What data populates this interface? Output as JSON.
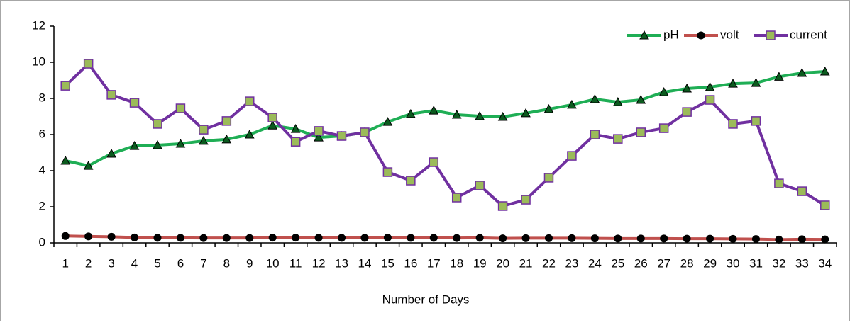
{
  "chart_data": {
    "type": "line",
    "xlabel": "Number of Days",
    "categories": [
      "1",
      "2",
      "3",
      "4",
      "5",
      "6",
      "7",
      "8",
      "9",
      "10",
      "11",
      "12",
      "13",
      "14",
      "15",
      "16",
      "17",
      "18",
      "19",
      "20",
      "21",
      "22",
      "23",
      "24",
      "25",
      "26",
      "27",
      "28",
      "29",
      "30",
      "31",
      "32",
      "33",
      "34"
    ],
    "series": [
      {
        "name": "pH",
        "color": "#1fae55",
        "marker": "triangle",
        "marker_fill": "#0b5a1e",
        "values": [
          4.55,
          4.27,
          4.94,
          5.37,
          5.41,
          5.49,
          5.65,
          5.73,
          6.0,
          6.5,
          6.31,
          5.84,
          5.92,
          6.12,
          6.7,
          7.14,
          7.33,
          7.1,
          7.02,
          6.98,
          7.18,
          7.41,
          7.65,
          7.96,
          7.8,
          7.92,
          8.35,
          8.55,
          8.63,
          8.82,
          8.86,
          9.2,
          9.41,
          9.49
        ]
      },
      {
        "name": "volt",
        "color": "#c0504d",
        "marker": "circle",
        "marker_fill": "#000000",
        "values": [
          0.38,
          0.36,
          0.34,
          0.3,
          0.28,
          0.28,
          0.27,
          0.27,
          0.27,
          0.29,
          0.29,
          0.28,
          0.28,
          0.28,
          0.29,
          0.28,
          0.28,
          0.27,
          0.28,
          0.25,
          0.26,
          0.26,
          0.26,
          0.25,
          0.24,
          0.24,
          0.24,
          0.23,
          0.23,
          0.22,
          0.21,
          0.18,
          0.2,
          0.19
        ]
      },
      {
        "name": "current",
        "color": "#7030a0",
        "marker": "square",
        "marker_fill": "#9bbb59",
        "values": [
          8.7,
          9.92,
          8.2,
          7.76,
          6.59,
          7.45,
          6.27,
          6.75,
          7.84,
          6.94,
          5.6,
          6.2,
          5.92,
          6.12,
          3.92,
          3.45,
          4.47,
          2.51,
          3.18,
          2.04,
          2.39,
          3.61,
          4.82,
          6.0,
          5.76,
          6.12,
          6.35,
          7.25,
          7.92,
          6.59,
          6.75,
          3.29,
          2.86,
          2.08
        ]
      }
    ],
    "ylim": [
      0,
      12
    ],
    "yticks": [
      0,
      2,
      4,
      6,
      8,
      10,
      12
    ],
    "grid": false,
    "legend": "top-right"
  }
}
